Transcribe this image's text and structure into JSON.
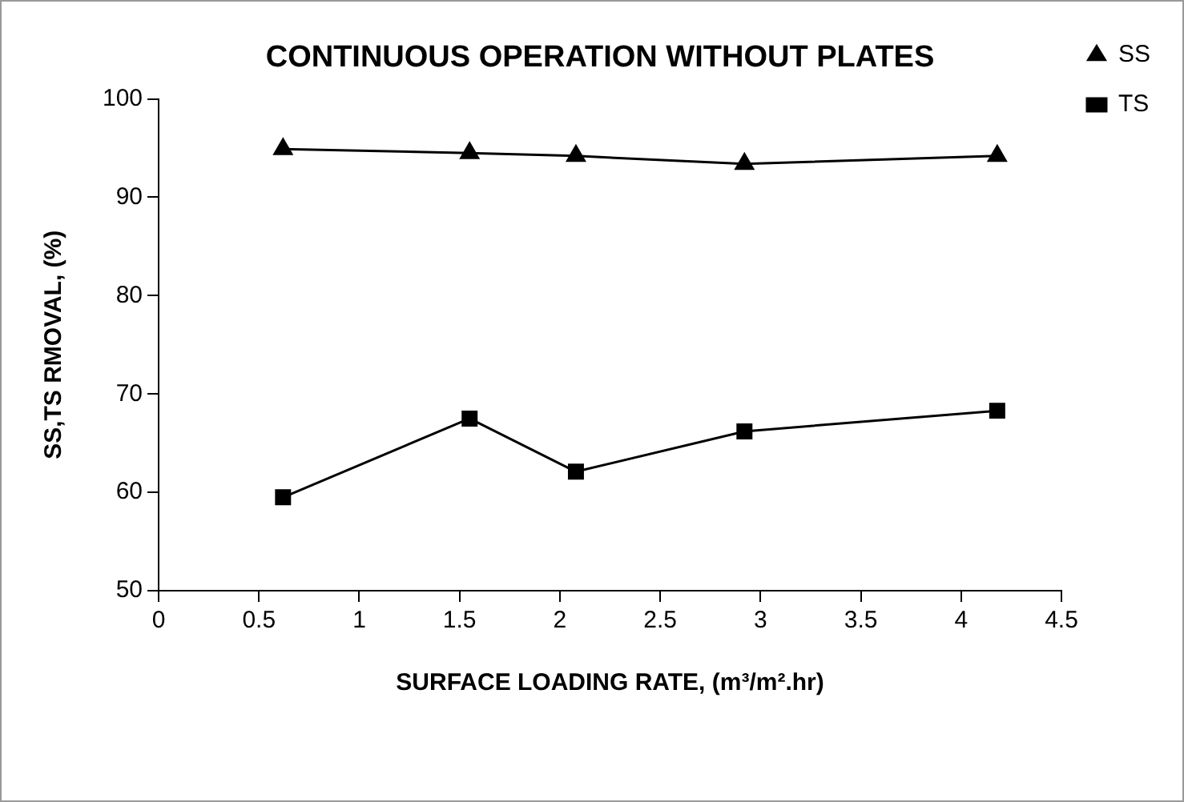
{
  "chart_data": {
    "type": "line",
    "title": "CONTINUOUS OPERATION WITHOUT PLATES",
    "xlabel": "SURFACE LOADING RATE, (m³/m².hr)",
    "ylabel": "SS,TS RMOVAL, (%)",
    "x": [
      0.62,
      1.55,
      2.08,
      2.92,
      4.18
    ],
    "series": [
      {
        "name": "SS",
        "color": "#000000",
        "marker": "triangle",
        "values": [
          94.9,
          94.5,
          94.2,
          93.4,
          94.2
        ]
      },
      {
        "name": "TS",
        "color": "#000000",
        "marker": "square",
        "values": [
          59.5,
          67.5,
          62.1,
          66.2,
          68.3
        ]
      }
    ],
    "xlim": [
      0,
      4.5
    ],
    "xticks": [
      0,
      0.5,
      1,
      1.5,
      2,
      2.5,
      3,
      3.5,
      4,
      4.5
    ],
    "ylim": [
      50,
      100
    ],
    "yticks": [
      50,
      60,
      70,
      80,
      90,
      100
    ],
    "grid": false,
    "legend": "top right",
    "line_style": "solid"
  }
}
